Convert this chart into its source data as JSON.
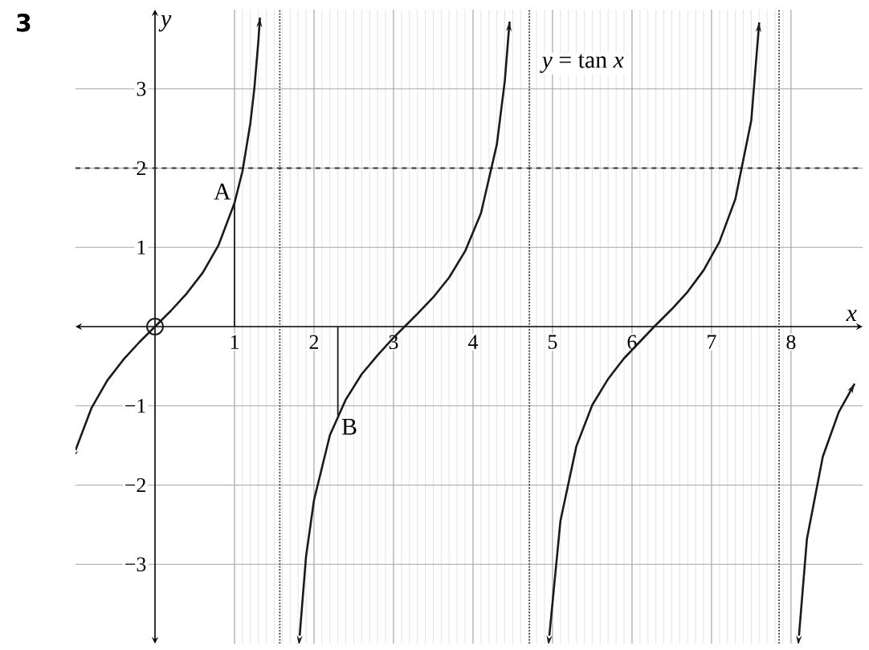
{
  "chart_data": {
    "type": "line",
    "title": "3",
    "xlabel": "x",
    "ylabel": "y",
    "xlim": [
      -1,
      8.9
    ],
    "ylim": [
      -4,
      4
    ],
    "xticks": [
      1,
      2,
      3,
      4,
      5,
      6,
      7,
      8
    ],
    "yticks": [
      {
        "value": -3,
        "label": "−3"
      },
      {
        "value": -2,
        "label": "−2"
      },
      {
        "value": -1,
        "label": "−1"
      },
      1,
      2,
      3
    ],
    "grid": true,
    "marker": "none",
    "series": [
      {
        "color": "#1a1a1a",
        "x": [
          -1,
          -0.8,
          -0.6,
          -0.4,
          -0.2,
          0,
          0.2,
          0.4,
          0.6,
          0.8,
          1.0,
          1.1,
          1.2,
          1.25,
          1.3,
          1.32
        ],
        "values": [
          -1.56,
          -1.03,
          -0.68,
          -0.42,
          -0.2,
          0,
          0.2,
          0.42,
          0.68,
          1.03,
          1.56,
          1.96,
          2.57,
          3.01,
          3.6,
          3.9
        ]
      },
      {
        "color": "#1a1a1a",
        "x": [
          1.82,
          1.9,
          2.0,
          2.2,
          2.4,
          2.6,
          2.8,
          3.0,
          3.14,
          3.3,
          3.5,
          3.7,
          3.9,
          4.1,
          4.3,
          4.4,
          4.46
        ],
        "values": [
          -3.9,
          -2.9,
          -2.19,
          -1.37,
          -0.92,
          -0.6,
          -0.36,
          -0.14,
          0,
          0.16,
          0.37,
          0.62,
          0.95,
          1.43,
          2.3,
          3.1,
          3.85
        ]
      },
      {
        "color": "#1a1a1a",
        "x": [
          4.96,
          5.1,
          5.3,
          5.5,
          5.7,
          5.9,
          6.1,
          6.28,
          6.5,
          6.7,
          6.9,
          7.1,
          7.3,
          7.5,
          7.6
        ],
        "values": [
          -3.9,
          -2.45,
          -1.51,
          -0.99,
          -0.66,
          -0.4,
          -0.19,
          0,
          0.22,
          0.44,
          0.71,
          1.07,
          1.61,
          2.6,
          3.84
        ]
      },
      {
        "color": "#1a1a1a",
        "x": [
          8.1,
          8.2,
          8.4,
          8.6,
          8.8
        ],
        "values": [
          -3.9,
          -2.68,
          -1.64,
          -1.08,
          -0.72
        ]
      },
      {
        "color": "#1a1a1a",
        "x": [
          1,
          1
        ],
        "values": [
          0,
          1.56
        ]
      },
      {
        "color": "#1a1a1a",
        "x": [
          2.3,
          2.3
        ],
        "values": [
          0,
          -1.12
        ]
      },
      {
        "type": "scatter",
        "color": "#1a1a1a",
        "marker": "circle",
        "x": [
          0
        ],
        "values": [
          0
        ]
      }
    ],
    "ref_lines": [
      {
        "axis": "x",
        "value": 1.57,
        "line_style": "dotted",
        "color": "#333333"
      },
      {
        "axis": "x",
        "value": 4.71,
        "line_style": "dotted",
        "color": "#333333"
      },
      {
        "axis": "x",
        "value": 7.85,
        "line_style": "dotted",
        "color": "#333333"
      },
      {
        "axis": "y",
        "value": 2,
        "line_style": "dashed",
        "color": "#333333"
      }
    ],
    "annotations": [
      "*y* = tan *x*",
      {
        "text": "A",
        "x": 1,
        "y": 1.56
      },
      {
        "text": "B",
        "x": 2.3,
        "y": -1.12
      }
    ]
  }
}
